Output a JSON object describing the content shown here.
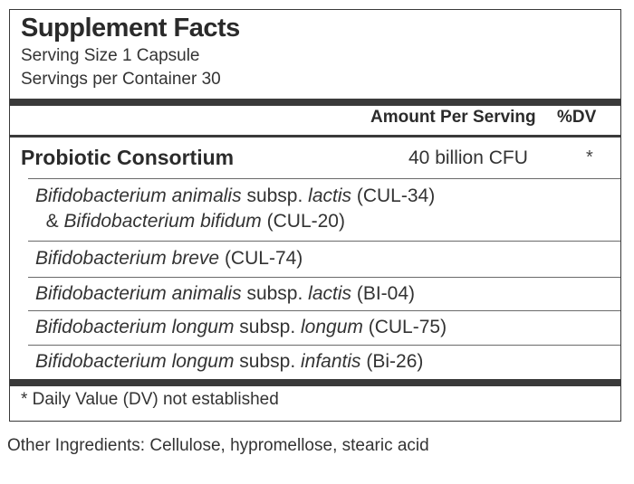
{
  "title": "Supplement Facts",
  "serving_size": "Serving Size 1 Capsule",
  "servings_per_container": "Servings per Container 30",
  "header": {
    "amount_per_serving": "Amount Per Serving",
    "dv": "%DV"
  },
  "consortium": {
    "name": "Probiotic Consortium",
    "amount": "40 billion  CFU",
    "dv": "*"
  },
  "ingredients": [
    {
      "parts": [
        [
          "Bifidobacterium animalis",
          "i"
        ],
        [
          " subsp. ",
          ""
        ],
        [
          "lactis",
          "i"
        ],
        [
          " (CUL-34)",
          ""
        ]
      ]
    },
    {
      "parts": [
        [
          "  & ",
          ""
        ],
        [
          "Bifidobacterium bifidum",
          "i"
        ],
        [
          " (CUL-20)",
          ""
        ]
      ]
    },
    {
      "parts": [
        [
          "Bifidobacterium breve",
          "i"
        ],
        [
          " (CUL-74)",
          ""
        ]
      ]
    },
    {
      "parts": [
        [
          "Bifidobacterium animalis",
          "i"
        ],
        [
          " subsp. ",
          ""
        ],
        [
          "lactis",
          "i"
        ],
        [
          " (BI-04)",
          ""
        ]
      ]
    },
    {
      "parts": [
        [
          "Bifidobacterium longum",
          "i"
        ],
        [
          " subsp. ",
          ""
        ],
        [
          "longum",
          "i"
        ],
        [
          " (CUL-75)",
          ""
        ]
      ]
    },
    {
      "parts": [
        [
          "Bifidobacterium longum",
          "i"
        ],
        [
          " subsp. ",
          ""
        ],
        [
          "infantis",
          "i"
        ],
        [
          " (Bi-26)",
          ""
        ]
      ]
    }
  ],
  "footnote": "* Daily Value (DV) not established",
  "other_ingredients": "Other Ingredients: Cellulose, hypromellose, stearic acid"
}
